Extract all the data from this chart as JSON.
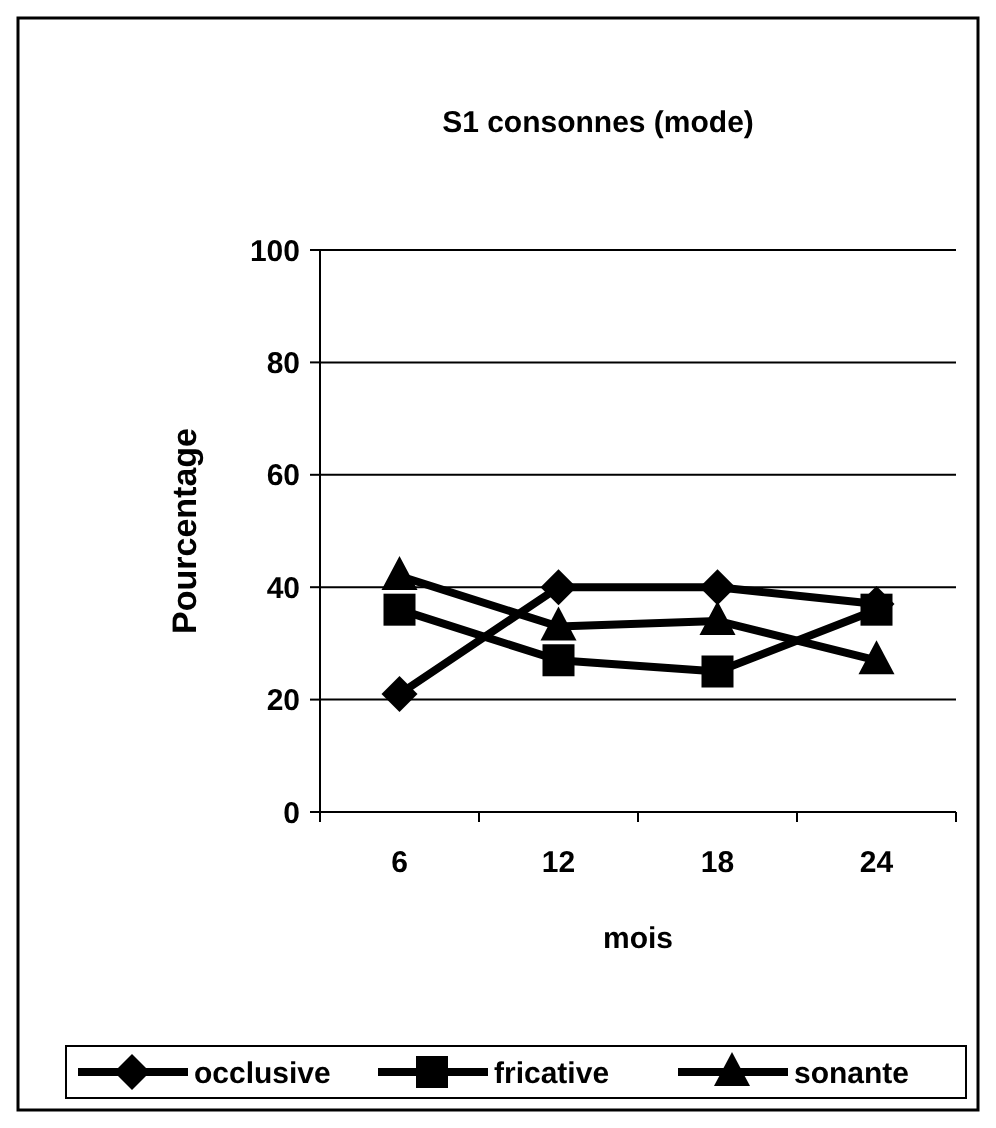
{
  "chart_data": {
    "type": "line",
    "title": "S1 consonnes (mode)",
    "xlabel": "mois",
    "ylabel": "Pourcentage",
    "categories": [
      "6",
      "12",
      "18",
      "24"
    ],
    "ylim": [
      0,
      100
    ],
    "yticks": [
      0,
      20,
      40,
      60,
      80,
      100
    ],
    "grid": "y",
    "legend": "bottom",
    "line_style": "solid",
    "series": [
      {
        "name": "occlusive",
        "color": "#000000",
        "marker": "diamond",
        "values": [
          21,
          40,
          40,
          37
        ]
      },
      {
        "name": "fricative",
        "color": "#000000",
        "marker": "square",
        "values": [
          36,
          27,
          25,
          36
        ]
      },
      {
        "name": "sonante",
        "color": "#000000",
        "marker": "triangle",
        "values": [
          42,
          33,
          34,
          27
        ]
      }
    ]
  }
}
